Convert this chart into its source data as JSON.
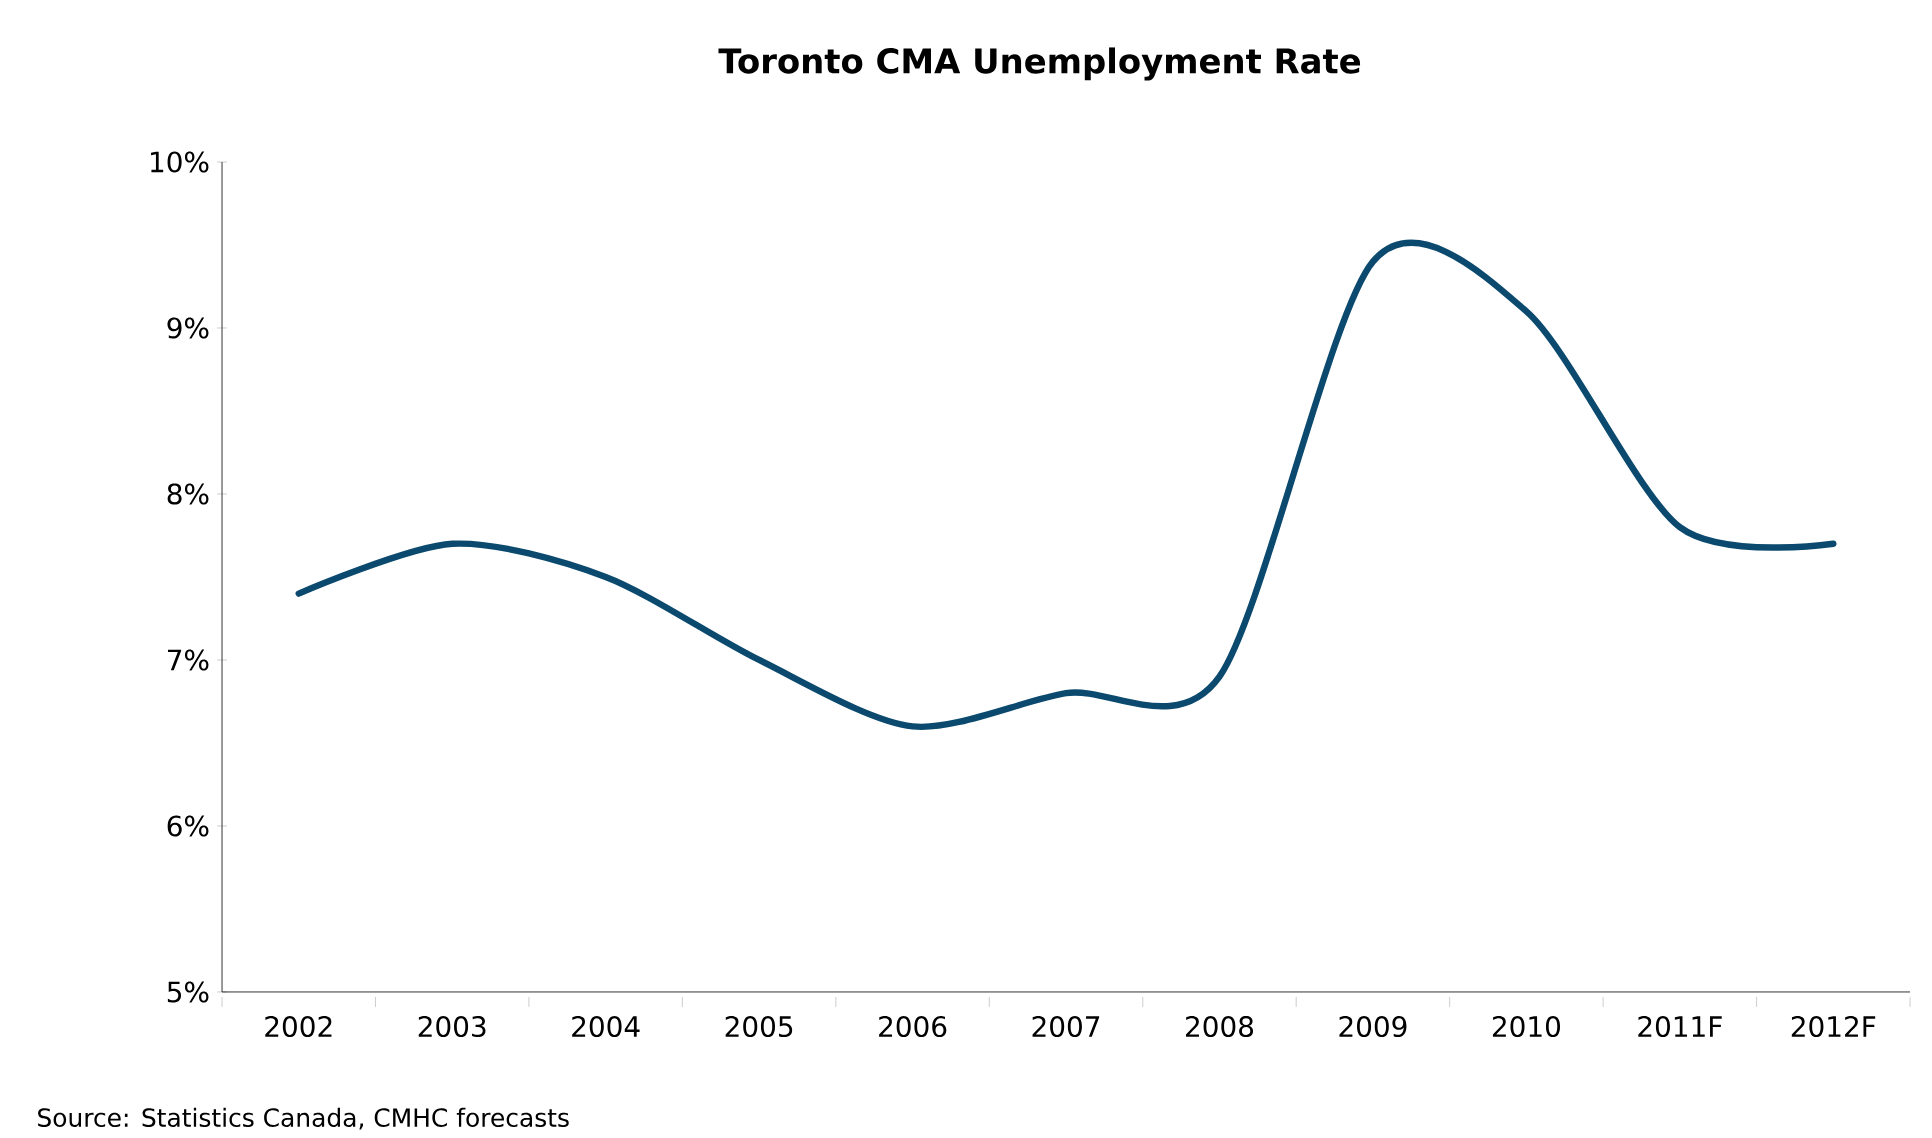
{
  "chart_data": {
    "type": "line",
    "title": "Toronto CMA Unemployment Rate",
    "categories": [
      "2002",
      "2003",
      "2004",
      "2005",
      "2006",
      "2007",
      "2008",
      "2009",
      "2010",
      "2011F",
      "2012F"
    ],
    "values": [
      7.4,
      7.7,
      7.5,
      7.0,
      6.6,
      6.8,
      6.9,
      9.4,
      9.1,
      7.8,
      7.7
    ],
    "color": "#0b4a6e",
    "line_style": "solid",
    "marker": "none",
    "grid": false,
    "ylim": [
      5,
      10
    ],
    "yticks": [
      {
        "value": 5,
        "label": "5%"
      },
      {
        "value": 6,
        "label": "6%"
      },
      {
        "value": 7,
        "label": "7%"
      },
      {
        "value": 8,
        "label": "8%"
      },
      {
        "value": 9,
        "label": "9%"
      },
      {
        "value": 10,
        "label": "10%"
      }
    ],
    "annotations": [
      "Source: Statistics Canada, CMHC forecasts"
    ]
  }
}
